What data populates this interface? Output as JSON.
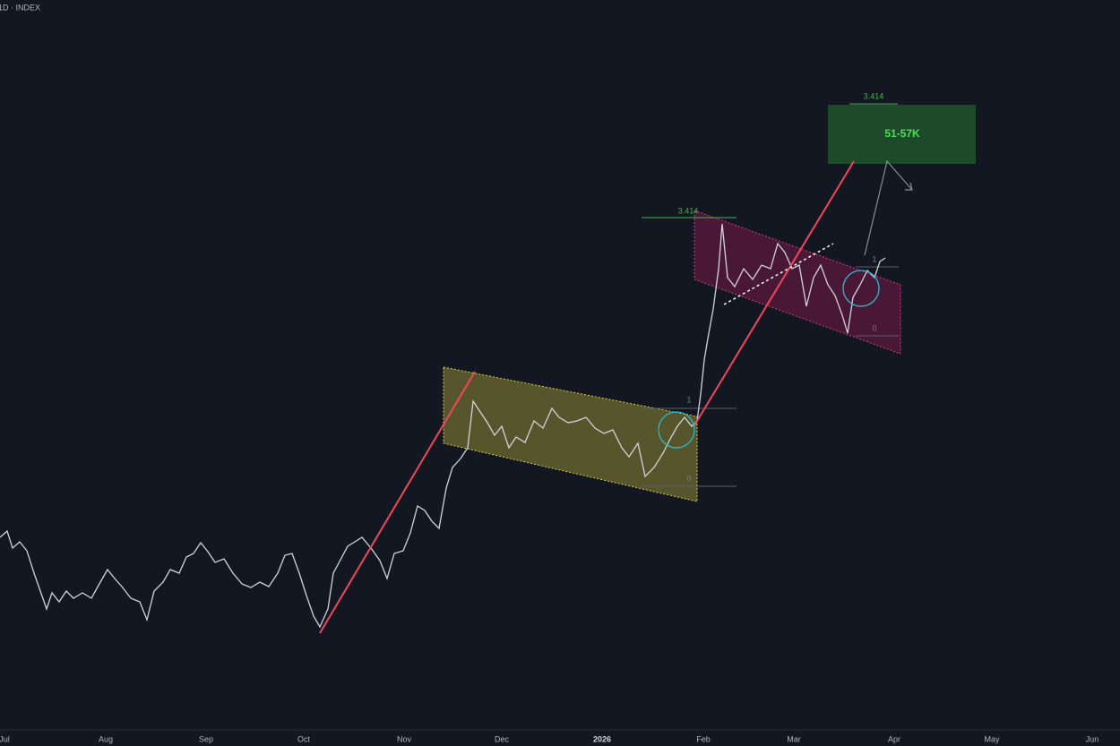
{
  "header": {
    "symbol": "1D · INDEX"
  },
  "x_axis": {
    "labels": [
      "Jul",
      "Aug",
      "Sep",
      "Oct",
      "Nov",
      "Dec",
      "2026",
      "Feb",
      "Mar",
      "Apr",
      "May",
      "Jun"
    ]
  },
  "annotations": {
    "target_box": "51-57K",
    "target_level": "3.414",
    "fib_lower": {
      "top": "3.414",
      "one": "1",
      "zero": "0"
    },
    "fib_upper": {
      "one": "1",
      "zero": "0"
    }
  }
}
